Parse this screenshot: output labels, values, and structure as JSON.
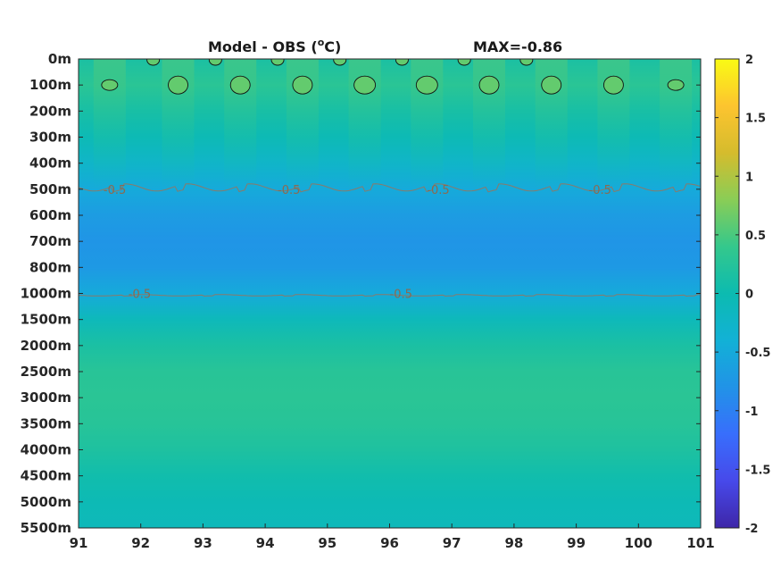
{
  "chart_data": {
    "type": "heatmap",
    "title": "Model - OBS (°C)",
    "title_prefix": "Model - OBS (",
    "title_unit_sup": "o",
    "title_suffix": "C)",
    "annotation": "MAX=-0.86",
    "x_ticks": [
      "91",
      "92",
      "93",
      "94",
      "95",
      "96",
      "97",
      "98",
      "99",
      "100",
      "101"
    ],
    "xlim": [
      91,
      101
    ],
    "y_ticks": [
      "0m",
      "100m",
      "200m",
      "300m",
      "400m",
      "500m",
      "600m",
      "700m",
      "800m",
      "1000m",
      "1500m",
      "2000m",
      "2500m",
      "3000m",
      "3500m",
      "4000m",
      "4500m",
      "5000m",
      "5500m"
    ],
    "colorbar": {
      "ticks": [
        "2",
        "1.5",
        "1",
        "0.5",
        "0",
        "-0.5",
        "-1",
        "-1.5",
        "-2"
      ],
      "range": [
        -2,
        2
      ],
      "colormap": "parula"
    },
    "depth_profile": [
      {
        "depth": "0m",
        "value": 0.15
      },
      {
        "depth": "100m",
        "value": 0.3
      },
      {
        "depth": "200m",
        "value": 0.12
      },
      {
        "depth": "300m",
        "value": -0.05
      },
      {
        "depth": "400m",
        "value": -0.25
      },
      {
        "depth": "500m",
        "value": -0.5
      },
      {
        "depth": "600m",
        "value": -0.68
      },
      {
        "depth": "700m",
        "value": -0.78
      },
      {
        "depth": "800m",
        "value": -0.72
      },
      {
        "depth": "1000m",
        "value": -0.5
      },
      {
        "depth": "1500m",
        "value": -0.1
      },
      {
        "depth": "2000m",
        "value": 0.15
      },
      {
        "depth": "2500m",
        "value": 0.28
      },
      {
        "depth": "3000m",
        "value": 0.3
      },
      {
        "depth": "3500m",
        "value": 0.27
      },
      {
        "depth": "4000m",
        "value": 0.18
      },
      {
        "depth": "4500m",
        "value": 0.05
      },
      {
        "depth": "5000m",
        "value": -0.05
      },
      {
        "depth": "5500m",
        "value": -0.1
      }
    ],
    "warm_patches_x": [
      91.5,
      92.6,
      93.6,
      94.6,
      95.6,
      96.6,
      97.6,
      98.6,
      99.6,
      100.6
    ],
    "contour_labels": [
      "-0.5",
      "-0.5",
      "-0.5",
      "-0.5",
      "-0.5",
      "-0.5"
    ],
    "contours": [
      {
        "level": -0.5,
        "depth": "500m"
      },
      {
        "level": -0.5,
        "depth": "1000m"
      },
      {
        "level": 0.5,
        "depth": "100m"
      }
    ]
  }
}
